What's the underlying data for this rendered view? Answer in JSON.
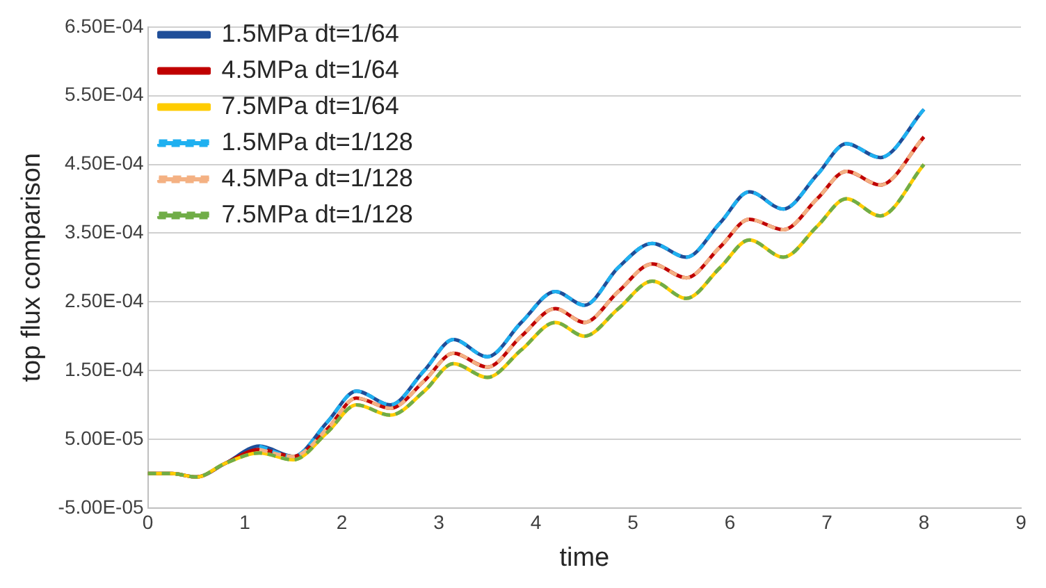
{
  "chart_data": {
    "type": "line",
    "xlabel": "time",
    "ylabel": "top flux comparison",
    "x": [
      0,
      0.25,
      0.5,
      0.8,
      1.15,
      1.5,
      1.85,
      2.15,
      2.5,
      2.85,
      3.15,
      3.5,
      3.85,
      4.2,
      4.5,
      4.85,
      5.2,
      5.55,
      5.9,
      6.2,
      6.55,
      6.9,
      7.2,
      7.55,
      8
    ],
    "xlim": [
      0,
      9
    ],
    "xticks": [
      0,
      1,
      2,
      3,
      4,
      5,
      6,
      7,
      8,
      9
    ],
    "ylim": [
      -5e-05,
      0.00065
    ],
    "yticks": [
      {
        "value": -5e-05,
        "label": "-5.00E-05"
      },
      {
        "value": 5e-05,
        "label": "5.00E-05"
      },
      {
        "value": 0.00015,
        "label": "1.50E-04"
      },
      {
        "value": 0.00025,
        "label": "2.50E-04"
      },
      {
        "value": 0.00035,
        "label": "3.50E-04"
      },
      {
        "value": 0.00045,
        "label": "4.50E-04"
      },
      {
        "value": 0.00055,
        "label": "5.50E-04"
      },
      {
        "value": 0.00065,
        "label": "6.50E-04"
      }
    ],
    "grid": "y",
    "legend": "top left",
    "marker": "none",
    "series": [
      {
        "name": "1.5MPa dt=1/64",
        "color": "#1f4e99",
        "line_style": "solid",
        "values": [
          0,
          0,
          -5e-06,
          1.5e-05,
          4e-05,
          2.5e-05,
          7.5e-05,
          0.00012,
          0.0001,
          0.00015,
          0.000195,
          0.00017,
          0.00022,
          0.000265,
          0.000245,
          0.0003,
          0.000335,
          0.000315,
          0.000365,
          0.00041,
          0.000385,
          0.000435,
          0.00048,
          0.00046,
          0.00053
        ]
      },
      {
        "name": "4.5MPa dt=1/64",
        "color": "#c00000",
        "line_style": "solid",
        "values": [
          0,
          0,
          -5e-06,
          1.5e-05,
          3.5e-05,
          2.5e-05,
          6.5e-05,
          0.00011,
          9.5e-05,
          0.000135,
          0.000175,
          0.000155,
          0.0002,
          0.00024,
          0.00022,
          0.000265,
          0.000305,
          0.000285,
          0.00033,
          0.00037,
          0.000355,
          0.0004,
          0.00044,
          0.00042,
          0.00049
        ]
      },
      {
        "name": "7.5MPa dt=1/64",
        "color": "#ffcc00",
        "line_style": "solid",
        "values": [
          0,
          0,
          -5e-06,
          1.5e-05,
          3e-05,
          2e-05,
          6e-05,
          0.0001,
          8.5e-05,
          0.00012,
          0.00016,
          0.00014,
          0.00018,
          0.00022,
          0.0002,
          0.00024,
          0.00028,
          0.000255,
          0.0003,
          0.00034,
          0.000315,
          0.00036,
          0.0004,
          0.000375,
          0.00045
        ]
      },
      {
        "name": "1.5MPa dt=1/128",
        "color": "#1fb0f0",
        "line_style": "dashed",
        "values": [
          null,
          null,
          null,
          null,
          4e-05,
          2.5e-05,
          7.5e-05,
          0.00012,
          0.0001,
          0.00015,
          0.000195,
          0.00017,
          0.00022,
          0.000265,
          0.000245,
          0.0003,
          0.000335,
          0.000315,
          0.000365,
          0.00041,
          0.000385,
          0.000435,
          0.00048,
          0.00046,
          0.00053
        ]
      },
      {
        "name": "4.5MPa dt=1/128",
        "color": "#f4b183",
        "line_style": "dashed",
        "values": [
          null,
          null,
          null,
          null,
          3.5e-05,
          2.5e-05,
          6.5e-05,
          0.00011,
          9.5e-05,
          0.000135,
          0.000175,
          0.000155,
          0.0002,
          0.00024,
          0.00022,
          0.000265,
          0.000305,
          0.000285,
          0.00033,
          0.00037,
          0.000355,
          0.0004,
          0.00044,
          0.00042,
          0.00049
        ]
      },
      {
        "name": "7.5MPa dt=1/128",
        "color": "#70ad47",
        "line_style": "dashed",
        "values": [
          0,
          0,
          -5e-06,
          1.5e-05,
          3e-05,
          2e-05,
          6e-05,
          0.0001,
          8.5e-05,
          0.00012,
          0.00016,
          0.00014,
          0.00018,
          0.00022,
          0.0002,
          0.00024,
          0.00028,
          0.000255,
          0.0003,
          0.00034,
          0.000315,
          0.00036,
          0.0004,
          0.000375,
          0.00045
        ]
      }
    ]
  }
}
